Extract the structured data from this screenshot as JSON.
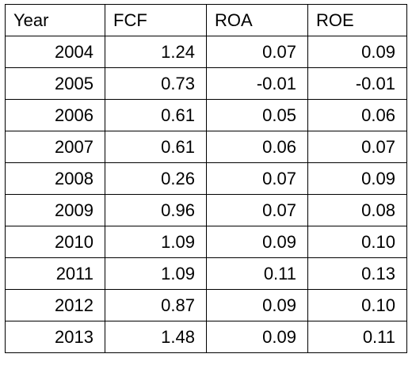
{
  "table": {
    "headers": [
      "Year",
      "FCF",
      "ROA",
      "ROE"
    ],
    "rows": [
      [
        "2004",
        "1.24",
        "0.07",
        "0.09"
      ],
      [
        "2005",
        "0.73",
        "-0.01",
        "-0.01"
      ],
      [
        "2006",
        "0.61",
        "0.05",
        "0.06"
      ],
      [
        "2007",
        "0.61",
        "0.06",
        "0.07"
      ],
      [
        "2008",
        "0.26",
        "0.07",
        "0.09"
      ],
      [
        "2009",
        "0.96",
        "0.07",
        "0.08"
      ],
      [
        "2010",
        "1.09",
        "0.09",
        "0.10"
      ],
      [
        "2011",
        "1.09",
        "0.11",
        "0.13"
      ],
      [
        "2012",
        "0.87",
        "0.09",
        "0.10"
      ],
      [
        "2013",
        "1.48",
        "0.09",
        "0.11"
      ]
    ]
  }
}
